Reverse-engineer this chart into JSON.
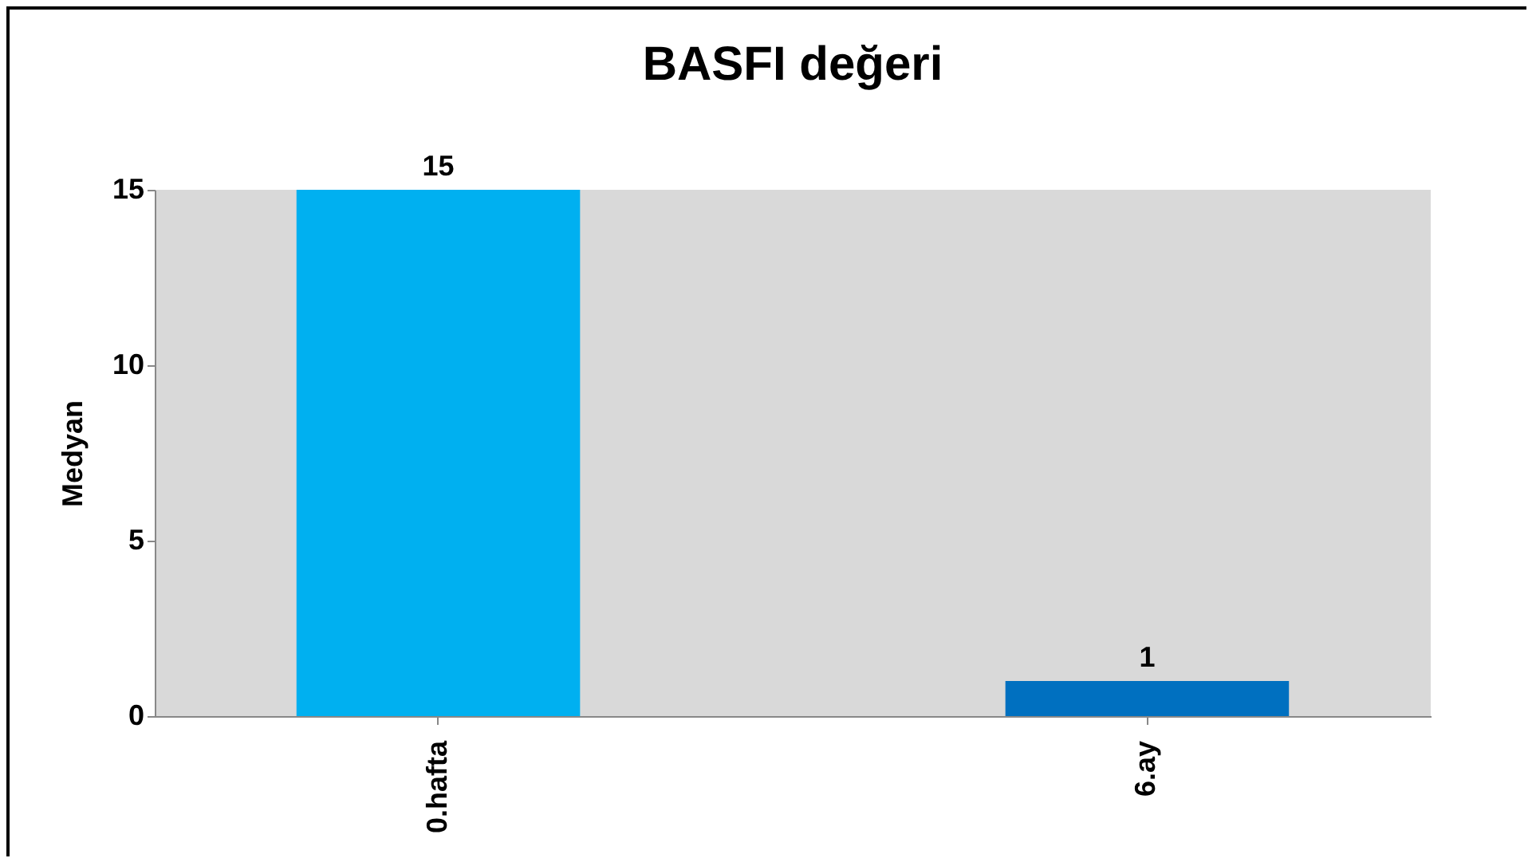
{
  "chart_data": {
    "type": "bar",
    "title": "BASFI değeri",
    "ylabel": "Medyan",
    "categories": [
      "0.hafta",
      "6.ay"
    ],
    "values": [
      15,
      1
    ],
    "colors": [
      "#00b0f0",
      "#0070c0"
    ],
    "ylim": [
      0,
      15
    ],
    "yticks": [
      0,
      5,
      10,
      15
    ],
    "data_labels": true,
    "grid": false,
    "legend": false
  }
}
